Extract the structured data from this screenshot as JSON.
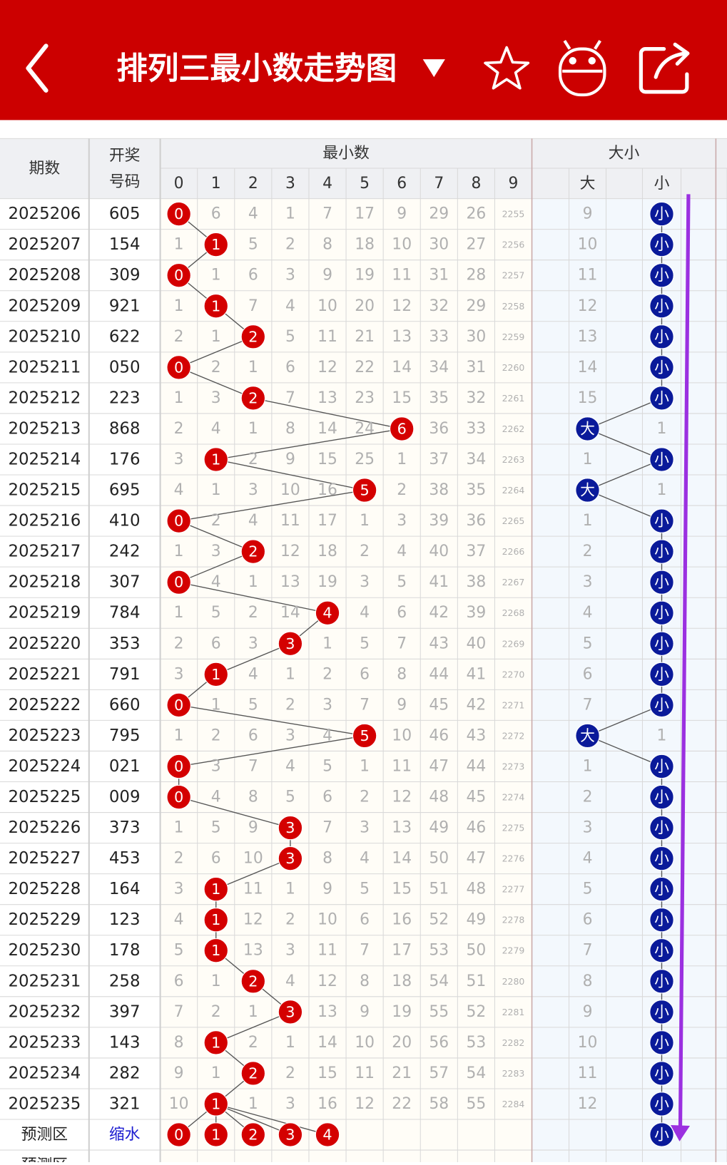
{
  "header": {
    "title": "排列三最小数走势图"
  },
  "table": {
    "headers": {
      "period": "期数",
      "number_top": "开奖",
      "number_bottom": "号码",
      "min_group": "最小数",
      "digits": [
        0,
        1,
        2,
        3,
        4,
        5,
        6,
        7,
        8,
        9
      ],
      "size_group": "大小",
      "big": "大",
      "small": "小"
    },
    "rows": [
      {
        "period": 2025206,
        "number": "605",
        "cells": [
          0,
          6,
          4,
          1,
          7,
          17,
          9,
          29,
          26,
          2255
        ],
        "size": [
          9,
          "小"
        ]
      },
      {
        "period": 2025207,
        "number": "154",
        "cells": [
          1,
          1,
          5,
          2,
          8,
          18,
          10,
          30,
          27,
          2256
        ],
        "size": [
          10,
          "小"
        ]
      },
      {
        "period": 2025208,
        "number": "309",
        "cells": [
          0,
          1,
          6,
          3,
          9,
          19,
          11,
          31,
          28,
          2257
        ],
        "size": [
          11,
          "小"
        ]
      },
      {
        "period": 2025209,
        "number": "921",
        "cells": [
          1,
          1,
          7,
          4,
          10,
          20,
          12,
          32,
          29,
          2258
        ],
        "size": [
          12,
          "小"
        ]
      },
      {
        "period": 2025210,
        "number": "622",
        "cells": [
          2,
          1,
          2,
          5,
          11,
          21,
          13,
          33,
          30,
          2259
        ],
        "size": [
          13,
          "小"
        ]
      },
      {
        "period": 2025211,
        "number": "050",
        "cells": [
          0,
          2,
          1,
          6,
          12,
          22,
          14,
          34,
          31,
          2260
        ],
        "size": [
          14,
          "小"
        ]
      },
      {
        "period": 2025212,
        "number": "223",
        "cells": [
          1,
          3,
          2,
          7,
          13,
          23,
          15,
          35,
          32,
          2261
        ],
        "size": [
          15,
          "小"
        ]
      },
      {
        "period": 2025213,
        "number": "868",
        "cells": [
          2,
          4,
          1,
          8,
          14,
          24,
          6,
          36,
          33,
          2262
        ],
        "size": [
          "大",
          1
        ]
      },
      {
        "period": 2025214,
        "number": "176",
        "cells": [
          3,
          1,
          2,
          9,
          15,
          25,
          1,
          37,
          34,
          2263
        ],
        "size": [
          1,
          "小"
        ]
      },
      {
        "period": 2025215,
        "number": "695",
        "cells": [
          4,
          1,
          3,
          10,
          16,
          5,
          2,
          38,
          35,
          2264
        ],
        "size": [
          "大",
          1
        ]
      },
      {
        "period": 2025216,
        "number": "410",
        "cells": [
          0,
          2,
          4,
          11,
          17,
          1,
          3,
          39,
          36,
          2265
        ],
        "size": [
          1,
          "小"
        ]
      },
      {
        "period": 2025217,
        "number": "242",
        "cells": [
          1,
          3,
          2,
          12,
          18,
          2,
          4,
          40,
          37,
          2266
        ],
        "size": [
          2,
          "小"
        ]
      },
      {
        "period": 2025218,
        "number": "307",
        "cells": [
          0,
          4,
          1,
          13,
          19,
          3,
          5,
          41,
          38,
          2267
        ],
        "size": [
          3,
          "小"
        ]
      },
      {
        "period": 2025219,
        "number": "784",
        "cells": [
          1,
          5,
          2,
          14,
          4,
          4,
          6,
          42,
          39,
          2268
        ],
        "size": [
          4,
          "小"
        ]
      },
      {
        "period": 2025220,
        "number": "353",
        "cells": [
          2,
          6,
          3,
          3,
          1,
          5,
          7,
          43,
          40,
          2269
        ],
        "size": [
          5,
          "小"
        ]
      },
      {
        "period": 2025221,
        "number": "791",
        "cells": [
          3,
          1,
          4,
          1,
          2,
          6,
          8,
          44,
          41,
          2270
        ],
        "size": [
          6,
          "小"
        ]
      },
      {
        "period": 2025222,
        "number": "660",
        "cells": [
          0,
          1,
          5,
          2,
          3,
          7,
          9,
          45,
          42,
          2271
        ],
        "size": [
          7,
          "小"
        ]
      },
      {
        "period": 2025223,
        "number": "795",
        "cells": [
          1,
          2,
          6,
          3,
          4,
          5,
          10,
          46,
          43,
          2272
        ],
        "size": [
          "大",
          1
        ]
      },
      {
        "period": 2025224,
        "number": "021",
        "cells": [
          0,
          3,
          7,
          4,
          5,
          1,
          11,
          47,
          44,
          2273
        ],
        "size": [
          1,
          "小"
        ]
      },
      {
        "period": 2025225,
        "number": "009",
        "cells": [
          0,
          4,
          8,
          5,
          6,
          2,
          12,
          48,
          45,
          2274
        ],
        "size": [
          2,
          "小"
        ]
      },
      {
        "period": 2025226,
        "number": "373",
        "cells": [
          1,
          5,
          9,
          3,
          7,
          3,
          13,
          49,
          46,
          2275
        ],
        "size": [
          3,
          "小"
        ]
      },
      {
        "period": 2025227,
        "number": "453",
        "cells": [
          2,
          6,
          10,
          3,
          8,
          4,
          14,
          50,
          47,
          2276
        ],
        "size": [
          4,
          "小"
        ]
      },
      {
        "period": 2025228,
        "number": "164",
        "cells": [
          3,
          1,
          11,
          1,
          9,
          5,
          15,
          51,
          48,
          2277
        ],
        "size": [
          5,
          "小"
        ]
      },
      {
        "period": 2025229,
        "number": "123",
        "cells": [
          4,
          1,
          12,
          2,
          10,
          6,
          16,
          52,
          49,
          2278
        ],
        "size": [
          6,
          "小"
        ]
      },
      {
        "period": 2025230,
        "number": "178",
        "cells": [
          5,
          1,
          13,
          3,
          11,
          7,
          17,
          53,
          50,
          2279
        ],
        "size": [
          7,
          "小"
        ]
      },
      {
        "period": 2025231,
        "number": "258",
        "cells": [
          6,
          1,
          2,
          4,
          12,
          8,
          18,
          54,
          51,
          2280
        ],
        "size": [
          8,
          "小"
        ]
      },
      {
        "period": 2025232,
        "number": "397",
        "cells": [
          7,
          2,
          1,
          3,
          13,
          9,
          19,
          55,
          52,
          2281
        ],
        "size": [
          9,
          "小"
        ]
      },
      {
        "period": 2025233,
        "number": "143",
        "cells": [
          8,
          1,
          2,
          1,
          14,
          10,
          20,
          56,
          53,
          2282
        ],
        "size": [
          10,
          "小"
        ]
      },
      {
        "period": 2025234,
        "number": "282",
        "cells": [
          9,
          1,
          2,
          2,
          15,
          11,
          21,
          57,
          54,
          2283
        ],
        "size": [
          11,
          "小"
        ]
      },
      {
        "period": 2025235,
        "number": "321",
        "cells": [
          10,
          1,
          1,
          3,
          16,
          12,
          22,
          58,
          55,
          2284
        ],
        "size": [
          12,
          "小"
        ]
      }
    ],
    "forecast": {
      "label": "预测区",
      "number": "缩水",
      "balls": [
        0,
        1,
        2,
        3,
        4
      ],
      "size": "小"
    },
    "next_label": "预测区"
  }
}
